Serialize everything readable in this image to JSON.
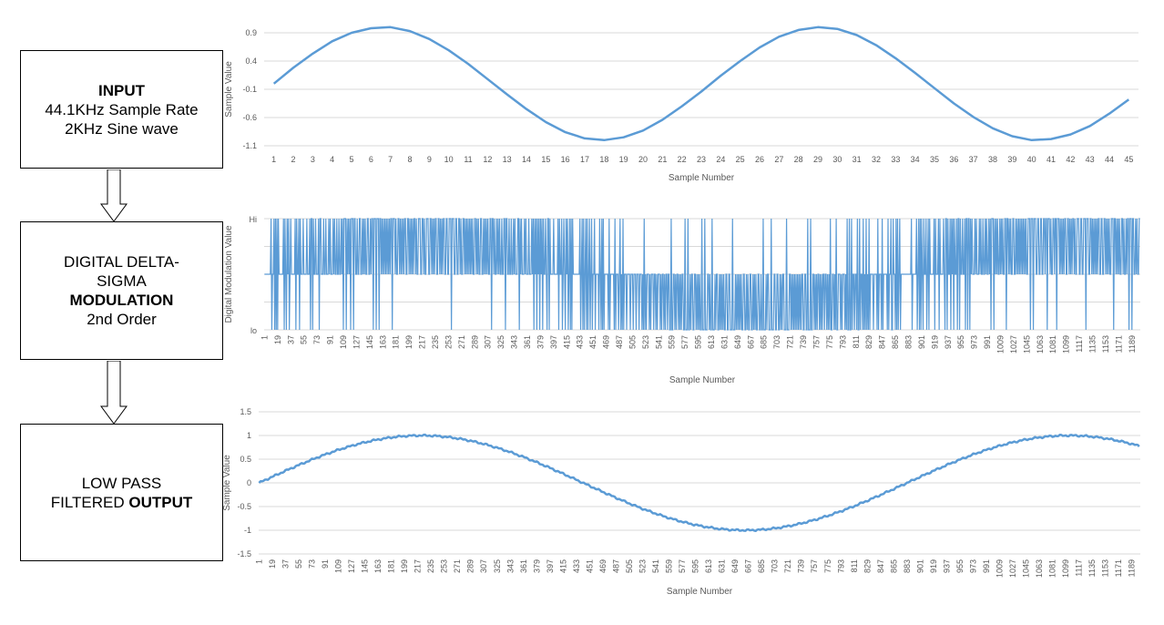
{
  "boxes": {
    "input": {
      "line1": "INPUT",
      "line2": "44.1KHz Sample Rate",
      "line3": "2KHz Sine wave"
    },
    "dsm": {
      "line1": "DIGITAL DELTA-",
      "line2": "SIGMA",
      "line3": "MODULATION",
      "line4": "2nd Order"
    },
    "lpf": {
      "line1": "LOW PASS",
      "line2": "FILTERED ",
      "line2_bold": "OUTPUT"
    }
  },
  "colors": {
    "series": "#5b9bd5",
    "grid": "#d9d9d9",
    "axis_text": "#595959"
  },
  "chart_data": [
    {
      "type": "line",
      "title": "",
      "xlabel": "Sample Number",
      "ylabel": "Sample Value",
      "ylim": [
        -1.1,
        0.9
      ],
      "yticks": [
        "0.9",
        "0.4",
        "-0.1",
        "-0.6",
        "-1.1"
      ],
      "categories": [
        "1",
        "2",
        "3",
        "4",
        "5",
        "6",
        "7",
        "8",
        "9",
        "10",
        "11",
        "12",
        "13",
        "14",
        "15",
        "16",
        "17",
        "18",
        "19",
        "20",
        "21",
        "22",
        "23",
        "24",
        "25",
        "26",
        "27",
        "28",
        "29",
        "30",
        "31",
        "32",
        "33",
        "34",
        "35",
        "36",
        "37",
        "38",
        "39",
        "40",
        "41",
        "42",
        "43",
        "44",
        "45"
      ],
      "values": [
        0.0,
        0.28,
        0.53,
        0.75,
        0.9,
        0.98,
        1.0,
        0.93,
        0.79,
        0.59,
        0.35,
        0.08,
        -0.19,
        -0.45,
        -0.68,
        -0.86,
        -0.97,
        -1.0,
        -0.95,
        -0.83,
        -0.64,
        -0.4,
        -0.14,
        0.14,
        0.4,
        0.64,
        0.83,
        0.95,
        1.0,
        0.97,
        0.86,
        0.68,
        0.45,
        0.19,
        -0.08,
        -0.35,
        -0.59,
        -0.79,
        -0.93,
        -1.0,
        -0.98,
        -0.9,
        -0.75,
        -0.53,
        -0.28
      ],
      "grid": true
    },
    {
      "type": "line",
      "title": "",
      "xlabel": "Sample Number",
      "ylabel": "Digital Modulation Value",
      "yticks": [
        "Hi",
        "lo"
      ],
      "levels": {
        "hi": 1,
        "mid": 0,
        "lo": -1
      },
      "categories": [
        "1",
        "19",
        "37",
        "55",
        "73",
        "91",
        "109",
        "127",
        "145",
        "163",
        "181",
        "199",
        "217",
        "235",
        "253",
        "271",
        "289",
        "307",
        "325",
        "343",
        "361",
        "379",
        "397",
        "415",
        "433",
        "451",
        "469",
        "487",
        "505",
        "523",
        "541",
        "559",
        "577",
        "595",
        "613",
        "631",
        "649",
        "667",
        "685",
        "703",
        "721",
        "739",
        "757",
        "775",
        "793",
        "811",
        "829",
        "847",
        "865",
        "883",
        "901",
        "919",
        "937",
        "955",
        "973",
        "991",
        "1009",
        "1027",
        "1045",
        "1063",
        "1081",
        "1099",
        "1117",
        "1135",
        "1153",
        "1171",
        "1189"
      ],
      "n_samples": 1200,
      "period_samples": 882,
      "grid": true
    },
    {
      "type": "line",
      "title": "",
      "xlabel": "Sample Number",
      "ylabel": "Sample Value",
      "ylim": [
        -1.5,
        1.5
      ],
      "yticks": [
        "1.5",
        "1",
        "0.5",
        "0",
        "-0.5",
        "-1",
        "-1.5"
      ],
      "categories": [
        "1",
        "19",
        "37",
        "55",
        "73",
        "91",
        "109",
        "127",
        "145",
        "163",
        "181",
        "199",
        "217",
        "235",
        "253",
        "271",
        "289",
        "307",
        "325",
        "343",
        "361",
        "379",
        "397",
        "415",
        "433",
        "451",
        "469",
        "487",
        "505",
        "523",
        "541",
        "559",
        "577",
        "595",
        "613",
        "631",
        "649",
        "667",
        "685",
        "703",
        "721",
        "739",
        "757",
        "775",
        "793",
        "811",
        "829",
        "847",
        "865",
        "883",
        "901",
        "919",
        "937",
        "955",
        "973",
        "991",
        "1009",
        "1027",
        "1045",
        "1063",
        "1081",
        "1099",
        "1117",
        "1135",
        "1153",
        "1171",
        "1189"
      ],
      "n_samples": 1200,
      "period_samples": 882,
      "amplitude": 1.0,
      "grid": true
    }
  ]
}
